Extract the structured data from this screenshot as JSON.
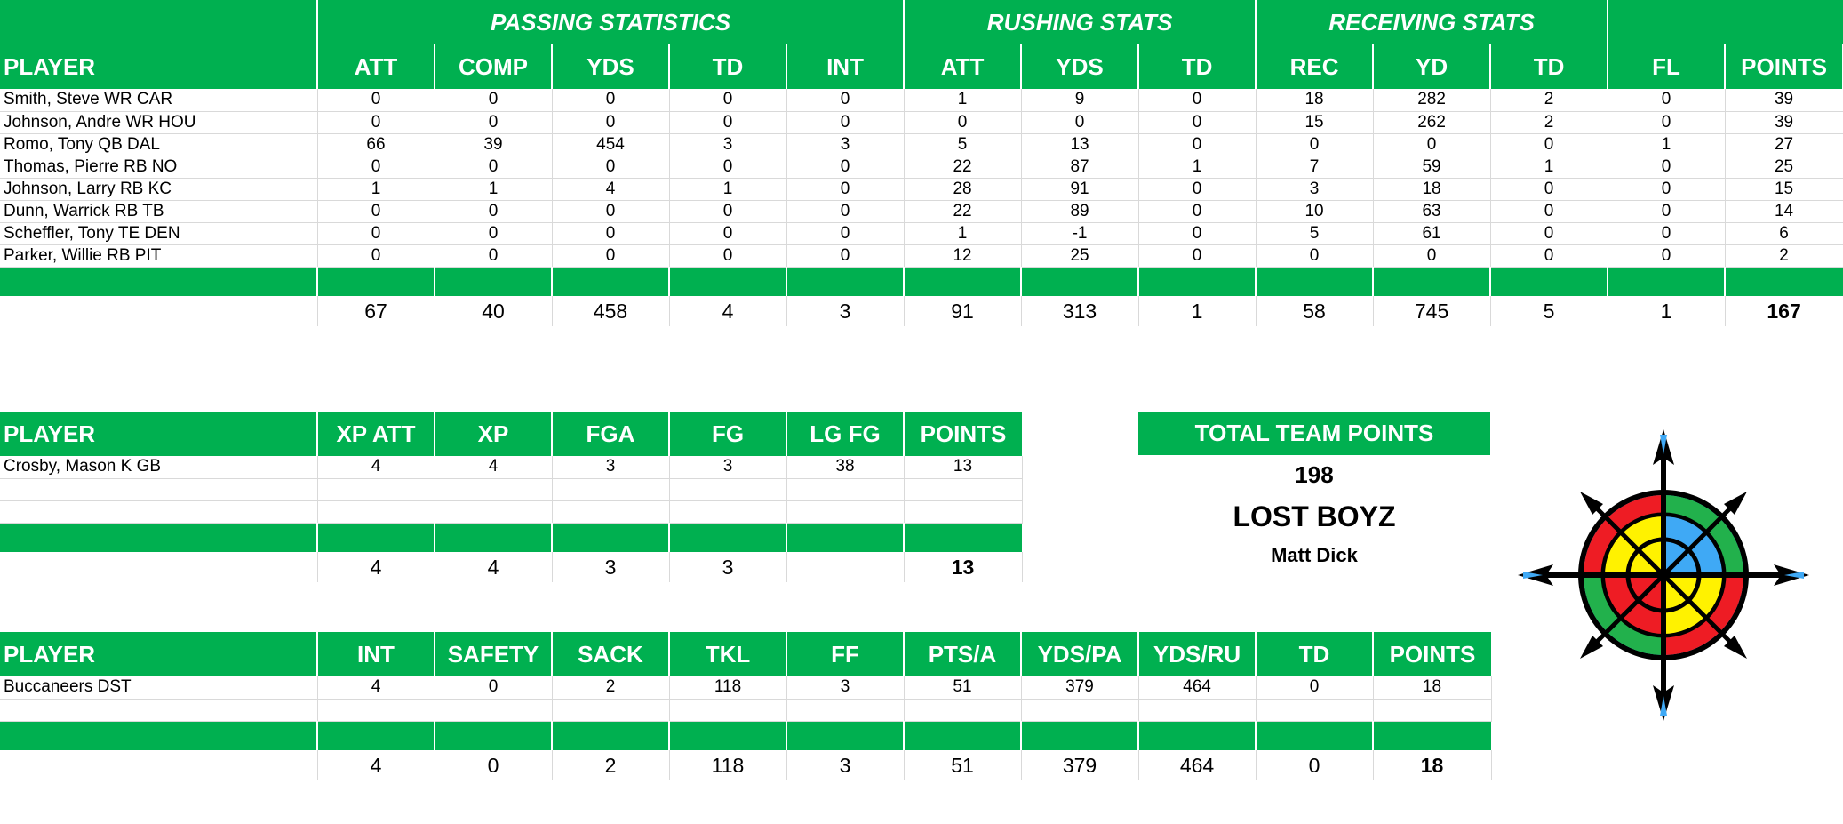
{
  "offense": {
    "sections": {
      "passing": "PASSING STATISTICS",
      "rushing": "RUSHING STATS",
      "receiving": "RECEIVING STATS"
    },
    "player_label": "PLAYER",
    "columns": [
      "ATT",
      "COMP",
      "YDS",
      "TD",
      "INT",
      "ATT",
      "YDS",
      "TD",
      "REC",
      "YD",
      "TD",
      "FL",
      "POINTS"
    ],
    "rows": [
      {
        "name": "Smith, Steve WR CAR",
        "values": [
          "0",
          "0",
          "0",
          "0",
          "0",
          "1",
          "9",
          "0",
          "18",
          "282",
          "2",
          "0",
          "39"
        ]
      },
      {
        "name": "Johnson, Andre WR HOU",
        "values": [
          "0",
          "0",
          "0",
          "0",
          "0",
          "0",
          "0",
          "0",
          "15",
          "262",
          "2",
          "0",
          "39"
        ]
      },
      {
        "name": "Romo, Tony QB DAL",
        "values": [
          "66",
          "39",
          "454",
          "3",
          "3",
          "5",
          "13",
          "0",
          "0",
          "0",
          "0",
          "1",
          "27"
        ]
      },
      {
        "name": "Thomas, Pierre RB NO",
        "values": [
          "0",
          "0",
          "0",
          "0",
          "0",
          "22",
          "87",
          "1",
          "7",
          "59",
          "1",
          "0",
          "25"
        ]
      },
      {
        "name": "Johnson, Larry RB KC",
        "values": [
          "1",
          "1",
          "4",
          "1",
          "0",
          "28",
          "91",
          "0",
          "3",
          "18",
          "0",
          "0",
          "15"
        ]
      },
      {
        "name": "Dunn, Warrick RB TB",
        "values": [
          "0",
          "0",
          "0",
          "0",
          "0",
          "22",
          "89",
          "0",
          "10",
          "63",
          "0",
          "0",
          "14"
        ]
      },
      {
        "name": "Scheffler, Tony TE DEN",
        "values": [
          "0",
          "0",
          "0",
          "0",
          "0",
          "1",
          "-1",
          "0",
          "5",
          "61",
          "0",
          "0",
          "6"
        ]
      },
      {
        "name": "Parker, Willie RB PIT",
        "values": [
          "0",
          "0",
          "0",
          "0",
          "0",
          "12",
          "25",
          "0",
          "0",
          "0",
          "0",
          "0",
          "2"
        ]
      }
    ],
    "totals": [
      "67",
      "40",
      "458",
      "4",
      "3",
      "91",
      "313",
      "1",
      "58",
      "745",
      "5",
      "1",
      "167"
    ]
  },
  "kicker": {
    "player_label": "PLAYER",
    "columns": [
      "XP ATT",
      "XP",
      "FGA",
      "FG",
      "LG FG",
      "POINTS"
    ],
    "rows": [
      {
        "name": "Crosby, Mason K GB",
        "values": [
          "4",
          "4",
          "3",
          "3",
          "38",
          "13"
        ]
      }
    ],
    "totals": [
      "4",
      "4",
      "3",
      "3",
      "",
      "13"
    ]
  },
  "defense": {
    "player_label": "PLAYER",
    "columns": [
      "INT",
      "SAFETY",
      "SACK",
      "TKL",
      "FF",
      "PTS/A",
      "YDS/PA",
      "YDS/RU",
      "TD",
      "POINTS"
    ],
    "rows": [
      {
        "name": "Buccaneers DST",
        "values": [
          "4",
          "0",
          "2",
          "118",
          "3",
          "51",
          "379",
          "464",
          "0",
          "18"
        ]
      }
    ],
    "totals": [
      "4",
      "0",
      "2",
      "118",
      "3",
      "51",
      "379",
      "464",
      "0",
      "18"
    ]
  },
  "summary": {
    "header": "TOTAL TEAM POINTS",
    "total_points": "198",
    "team_name": "LOST BOYZ",
    "owner": "Matt Dick"
  },
  "logo_icon": "compass-rose-icon",
  "colors": {
    "header_green": "#00b050",
    "logo_red": "#ee1c24",
    "logo_green": "#22b14c",
    "logo_yellow": "#fff200",
    "logo_blue": "#3fa9f5"
  }
}
